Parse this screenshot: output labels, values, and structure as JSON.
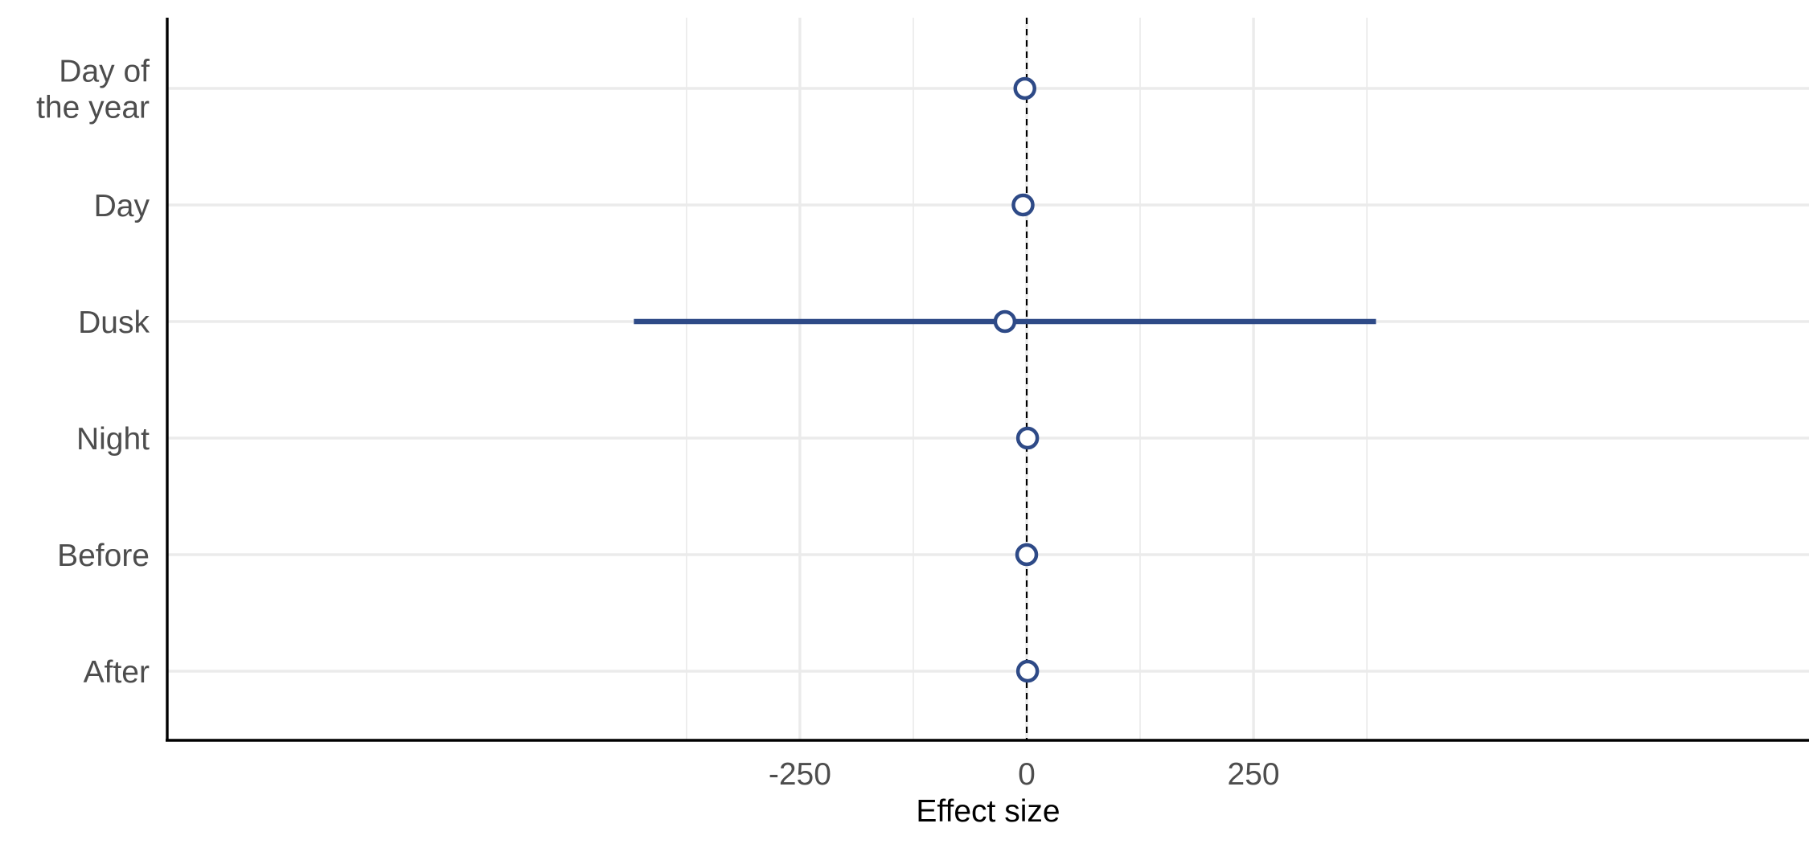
{
  "chart_data": {
    "type": "forest",
    "xlabel": "Effect size",
    "ylabel": "",
    "xlim": [
      -475,
      425
    ],
    "x_ticks": [
      -250,
      0,
      250
    ],
    "x_tick_labels": [
      "-250",
      "0",
      "250"
    ],
    "x_minor_ticks": [
      -375,
      -125,
      125,
      375
    ],
    "reference_line": 0,
    "grid": true,
    "color": "#2e4a87",
    "categories": [
      "Day of the year",
      "Day",
      "Dusk",
      "Night",
      "Before",
      "After"
    ],
    "category_labels": [
      [
        "Day of",
        "the year"
      ],
      [
        "Day"
      ],
      [
        "Dusk"
      ],
      [
        "Night"
      ],
      [
        "Before"
      ],
      [
        "After"
      ]
    ],
    "estimates": [
      {
        "label": "Day of the year",
        "value": -2,
        "lower": -2,
        "upper": -2
      },
      {
        "label": "Day",
        "value": -4,
        "lower": -4,
        "upper": -4
      },
      {
        "label": "Dusk",
        "value": -24,
        "lower": -433,
        "upper": 385
      },
      {
        "label": "Night",
        "value": 1,
        "lower": 1,
        "upper": 1
      },
      {
        "label": "Before",
        "value": 0,
        "lower": 0,
        "upper": 0
      },
      {
        "label": "After",
        "value": 1,
        "lower": 1,
        "upper": 1
      }
    ]
  }
}
